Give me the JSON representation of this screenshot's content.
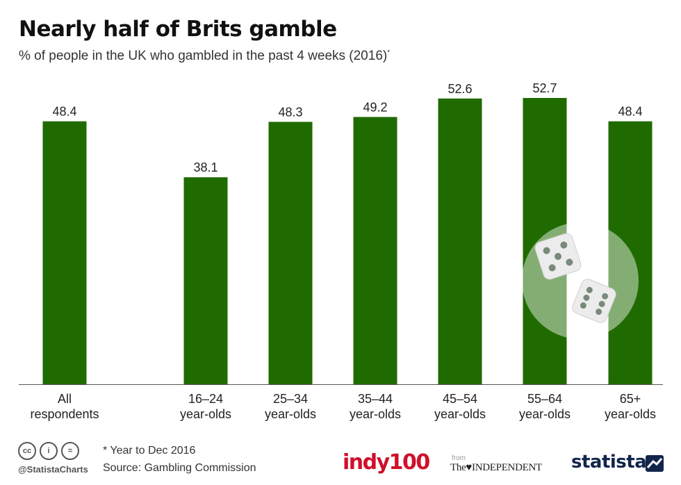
{
  "title": "Nearly half of Brits gamble",
  "subtitle": "% of people in the UK who gambled in the past 4 weeks (2016)",
  "subtitle_marker": "*",
  "colors": {
    "bar": "#1f6b00",
    "baseline": "#555555"
  },
  "chart_data": {
    "type": "bar",
    "title": "Nearly half of Brits gamble",
    "subtitle": "% of people in the UK who gambled in the past 4 weeks (2016)*",
    "categories": [
      [
        "All",
        "respondents"
      ],
      [
        "16–24",
        "year-olds"
      ],
      [
        "25–34",
        "year-olds"
      ],
      [
        "35–44",
        "year-olds"
      ],
      [
        "45–54",
        "year-olds"
      ],
      [
        "55–64",
        "year-olds"
      ],
      [
        "65+",
        "year-olds"
      ]
    ],
    "values": [
      48.4,
      38.1,
      48.3,
      49.2,
      52.6,
      52.7,
      48.4
    ],
    "value_labels": [
      "48.4",
      "38.1",
      "48.3",
      "49.2",
      "52.6",
      "52.7",
      "48.4"
    ],
    "ylim": [
      0,
      55
    ],
    "grid": false,
    "xlabel": "",
    "ylabel": ""
  },
  "footer": {
    "icons": [
      "cc-icon",
      "attribution-icon",
      "no-derivatives-icon"
    ],
    "icon_glyphs": [
      "cc",
      "i",
      "="
    ],
    "handle": "@StatistaCharts",
    "footnote": "* Year to Dec 2016",
    "source": "Source: Gambling Commission",
    "indy_logo": "indy100",
    "from_label": "from",
    "independent_logo": "The♥INDEPENDENT",
    "statista_logo": "statista"
  }
}
